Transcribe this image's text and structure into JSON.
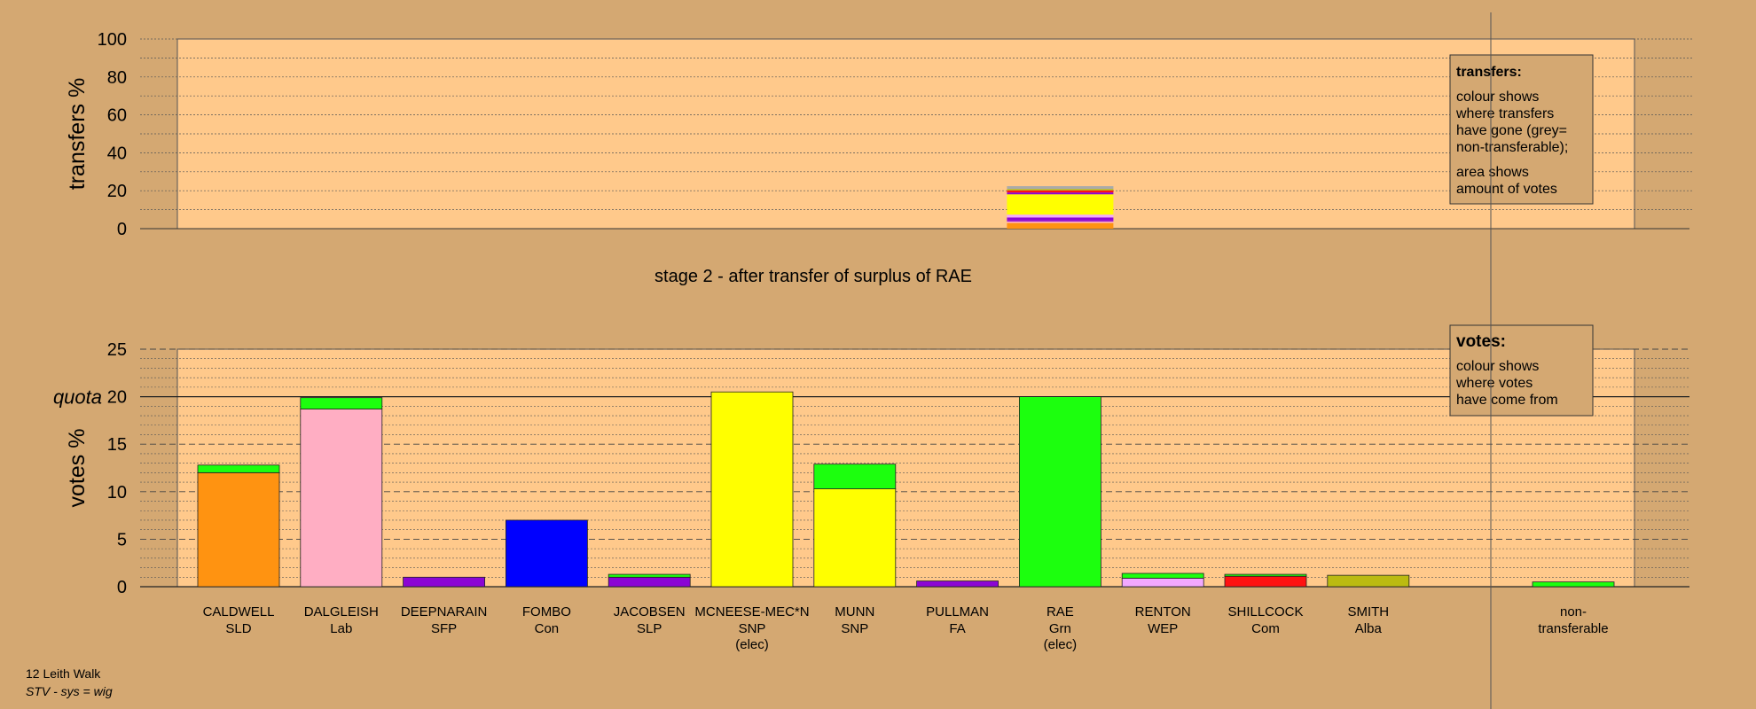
{
  "footer": {
    "ward": "12 Leith Walk",
    "system": "STV - sys = wig"
  },
  "stage_title": "stage 2 - after transfer of surplus of RAE",
  "legend_transfers": {
    "title": "transfers:",
    "lines1": [
      "colour shows",
      "where transfers",
      "have gone (grey=",
      "non-transferable);"
    ],
    "lines2": [
      "area shows",
      "amount of votes"
    ]
  },
  "legend_votes": {
    "title": "votes:",
    "lines": [
      "colour shows",
      "where votes",
      "have come from"
    ]
  },
  "colors": {
    "background": "#d4a872",
    "plot": "#ffc98b",
    "SLD": "#ff9311",
    "Lab": "#ffaec3",
    "SFP": "#8b05d4",
    "Con": "#0000ff",
    "SLP": "#8b05d4",
    "SNP": "#ffff00",
    "FA": "#8b05d4",
    "Grn": "#1cff0e",
    "WEP": "#f2a8ff",
    "Com": "#ff1111",
    "Alba": "#bbbb11",
    "nontransferable": "#aaaaaa"
  },
  "chart_data": [
    {
      "type": "bar",
      "title": "",
      "ylabel": "transfers %",
      "ylim": [
        0,
        100
      ],
      "yticks": [
        0,
        20,
        40,
        60,
        80,
        100
      ],
      "grid": true,
      "bars": [
        {
          "category": "RAE",
          "segments": [
            {
              "party": "SLD",
              "value": 3.0
            },
            {
              "party": "Lab",
              "value": 0.8
            },
            {
              "party": "SFP",
              "value": 0.5
            },
            {
              "party": "SLP",
              "value": 1.6
            },
            {
              "party": "WEP",
              "value": 1.5
            },
            {
              "party": "SNP",
              "value": 9.5
            },
            {
              "party": "SNP",
              "value": 1.2
            },
            {
              "party": "SFP",
              "value": 1.0
            },
            {
              "party": "Com",
              "value": 1.0
            },
            {
              "party": "Alba",
              "value": 0.8
            },
            {
              "party": "nontransferable",
              "value": 1.5
            }
          ]
        }
      ]
    },
    {
      "type": "bar",
      "title": "",
      "ylabel": "votes %",
      "ylim": [
        0,
        25
      ],
      "yticks": [
        0,
        5,
        10,
        15,
        20,
        25
      ],
      "quota": 20,
      "quota_label": "quota",
      "grid": true,
      "categories": [
        {
          "name": "CALDWELL",
          "party": "SLD",
          "note": "",
          "segments": [
            {
              "party": "SLD",
              "value": 12.0
            },
            {
              "party": "Grn",
              "value": 0.8
            }
          ]
        },
        {
          "name": "DALGLEISH",
          "party": "Lab",
          "note": "",
          "segments": [
            {
              "party": "Lab",
              "value": 18.7
            },
            {
              "party": "Grn",
              "value": 1.2
            }
          ]
        },
        {
          "name": "DEEPNARAIN",
          "party": "SFP",
          "note": "",
          "segments": [
            {
              "party": "SFP",
              "value": 1.0
            }
          ]
        },
        {
          "name": "FOMBO",
          "party": "Con",
          "note": "",
          "segments": [
            {
              "party": "Con",
              "value": 7.0
            }
          ]
        },
        {
          "name": "JACOBSEN",
          "party": "SLP",
          "note": "",
          "segments": [
            {
              "party": "SLP",
              "value": 1.0
            },
            {
              "party": "Grn",
              "value": 0.3
            }
          ]
        },
        {
          "name": "MCNEESE-MEC*N",
          "party": "SNP",
          "note": "(elec)",
          "segments": [
            {
              "party": "SNP",
              "value": 20.5
            }
          ]
        },
        {
          "name": "MUNN",
          "party": "SNP",
          "note": "",
          "segments": [
            {
              "party": "SNP",
              "value": 10.3
            },
            {
              "party": "Grn",
              "value": 2.6
            }
          ]
        },
        {
          "name": "PULLMAN",
          "party": "FA",
          "note": "",
          "segments": [
            {
              "party": "FA",
              "value": 0.6
            }
          ]
        },
        {
          "name": "RAE",
          "party": "Grn",
          "note": "(elec)",
          "segments": [
            {
              "party": "Grn",
              "value": 20.0
            }
          ]
        },
        {
          "name": "RENTON",
          "party": "WEP",
          "note": "",
          "segments": [
            {
              "party": "WEP",
              "value": 0.9
            },
            {
              "party": "Grn",
              "value": 0.5
            }
          ]
        },
        {
          "name": "SHILLCOCK",
          "party": "Com",
          "note": "",
          "segments": [
            {
              "party": "Com",
              "value": 1.1
            },
            {
              "party": "Grn",
              "value": 0.2
            }
          ]
        },
        {
          "name": "SMITH",
          "party": "Alba",
          "note": "",
          "segments": [
            {
              "party": "Alba",
              "value": 1.2
            }
          ]
        }
      ],
      "nontransferable": {
        "line1": "non-",
        "line2": "transferable",
        "segments": [
          {
            "party": "Grn",
            "value": 0.5
          }
        ]
      }
    }
  ]
}
